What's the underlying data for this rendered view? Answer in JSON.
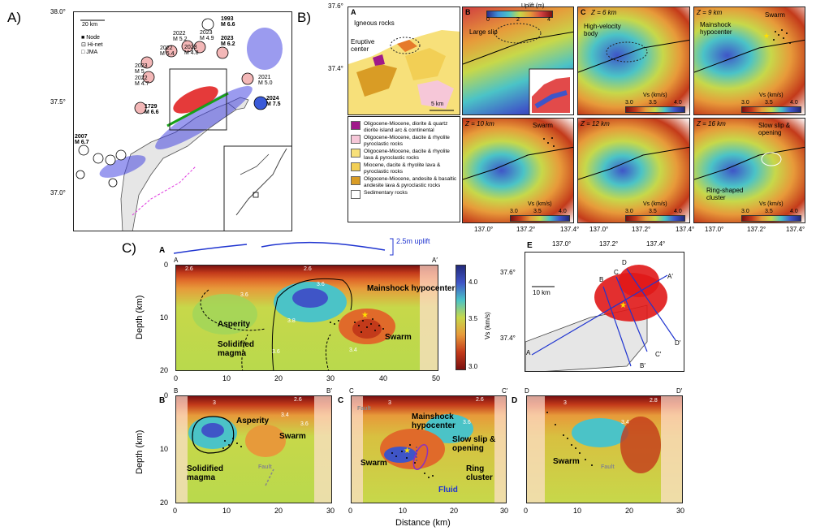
{
  "panel_labels": {
    "a": "A)",
    "b": "B)",
    "c": "C)"
  },
  "panelA": {
    "lat_ticks": [
      "38.0°",
      "37.5°",
      "37.0°"
    ],
    "scale": "20 km",
    "legend": [
      {
        "symbol": "■",
        "label": "Node"
      },
      {
        "symbol": "⊡",
        "label": "Hi-net"
      },
      {
        "symbol": "□",
        "label": "JMA"
      }
    ],
    "events": [
      {
        "year": "1993",
        "mag": "M 6.6"
      },
      {
        "year": "2023",
        "mag": "M 4.9"
      },
      {
        "year": "2022",
        "mag": "M 5.2"
      },
      {
        "year": "2023",
        "mag": "M 6.2"
      },
      {
        "year": "2023",
        "mag": "M 4.8"
      },
      {
        "year": "2022",
        "mag": "M 5.4"
      },
      {
        "year": "2023",
        "mag": "M 5"
      },
      {
        "year": "2022",
        "mag": "M 4.7"
      },
      {
        "year": "2021",
        "mag": "M 5.0"
      },
      {
        "year": "2024",
        "mag": "M 7.5"
      },
      {
        "year": "1729",
        "mag": "M 6.6"
      },
      {
        "year": "2007",
        "mag": "M 6.7"
      }
    ]
  },
  "panelB": {
    "lat_ticks": [
      "37.6°",
      "37.4°"
    ],
    "lon_ticks": [
      "137.0°",
      "137.2°",
      "137.4°"
    ],
    "A": {
      "letter": "A",
      "labels": [
        "Igneous rocks",
        "Eruptive center"
      ],
      "scale": "5 km"
    },
    "B": {
      "letter": "B",
      "colorbar_title": "Uplift (m)",
      "colorbar_ticks": [
        "0",
        "2",
        "4"
      ],
      "label": "Large slip"
    },
    "C": {
      "letter": "C",
      "z": "Z = 6 km",
      "label": "High-velocity body"
    },
    "maps": [
      {
        "z": "Z = 9 km",
        "labels": [
          "Swarm",
          "Mainshock hypocenter"
        ]
      },
      {
        "z": "Z = 10 km",
        "labels": [
          "Swarm"
        ]
      },
      {
        "z": "Z = 12 km",
        "labels": []
      },
      {
        "z": "Z = 16 km",
        "labels": [
          "Slow slip & opening",
          "Ring-shaped cluster"
        ]
      }
    ],
    "vs_bar": {
      "title": "Vs (km/s)",
      "ticks": [
        "3.0",
        "3.5",
        "4.0"
      ]
    },
    "geology_legend": [
      {
        "color": "#a0198a",
        "text": "Oligocene-Miocene, diorite & quartz diorite island arc & continental"
      },
      {
        "color": "#f6c7d8",
        "text": "Oligocene-Miocene, dacite & rhyolite pyroclastic rocks"
      },
      {
        "color": "#f7e07a",
        "text": "Oligocene-Miocene, dacite & rhyolite lava & pyroclastic rocks"
      },
      {
        "color": "#f2cf55",
        "text": "Miocene, dacite & rhyolite lava & pyroclastic rocks"
      },
      {
        "color": "#d99c25",
        "text": "Oligocene-Miocene, andesite & basaltic andesite lava & pyroclastic rocks"
      },
      {
        "color": "#ffffff",
        "text": "Sedimentary rocks"
      }
    ]
  },
  "panelC": {
    "A": {
      "letter": "A",
      "start": "A",
      "end": "A′",
      "uplift_label": "2.5m uplift",
      "contours": [
        "2.6",
        "2.6",
        "3.6",
        "3.6",
        "3.8",
        "3.6",
        "3.4"
      ],
      "labels": [
        "Mainshock hypocenter",
        "Asperity",
        "Solidified magma",
        "Swarm"
      ],
      "ylabel": "Depth (km)",
      "y_ticks": [
        "0",
        "10",
        "20"
      ],
      "x_ticks": [
        "0",
        "10",
        "20",
        "30",
        "40",
        "50"
      ]
    },
    "vs_bar": {
      "title": "Vs (km/s)",
      "ticks": [
        "4.0",
        "3.5",
        "3.0"
      ]
    },
    "E": {
      "letter": "E",
      "lon_ticks": [
        "137.0°",
        "137.2°",
        "137.4°"
      ],
      "lat_ticks": [
        "37.6°",
        "37.4°"
      ],
      "scale": "10 km",
      "profile_labels": [
        "A",
        "A′",
        "B",
        "B′",
        "C",
        "C′",
        "D",
        "D′"
      ]
    },
    "B": {
      "letter": "B",
      "start": "B",
      "end": "B′",
      "contours": [
        "3",
        "2.6",
        "3.4",
        "3.6"
      ],
      "labels": [
        "Asperity",
        "Swarm",
        "Solidified magma",
        "Fault"
      ]
    },
    "C": {
      "letter": "C",
      "start": "C",
      "end": "C′",
      "contours": [
        "3",
        "2.6",
        "3.6"
      ],
      "labels": [
        "Mainshock hypocenter",
        "Slow slip & opening",
        "Swarm",
        "Ring cluster",
        "Fluid",
        "Fault"
      ]
    },
    "D": {
      "letter": "D",
      "start": "D",
      "end": "D′",
      "contours": [
        "3",
        "2.8",
        "3.4"
      ],
      "labels": [
        "Swarm",
        "Fault"
      ]
    },
    "x_ticks_30": [
      "0",
      "10",
      "20",
      "30"
    ],
    "y_ticks": [
      "0",
      "10",
      "20"
    ],
    "xlabel": "Distance (km)",
    "ylabel": "Depth (km)"
  }
}
